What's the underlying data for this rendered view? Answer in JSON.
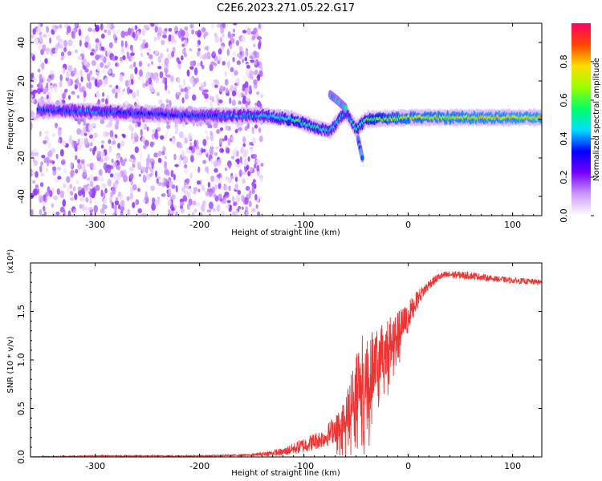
{
  "title": "C2E6.2023.271.05.22.G17",
  "chart_data": [
    {
      "type": "heatmap",
      "xlabel": "Height of straight line (km)",
      "ylabel": "Frequency (Hz)",
      "xlim": [
        -362,
        128
      ],
      "ylim": [
        -50,
        50
      ],
      "x_ticks": [
        -300,
        -200,
        -100,
        0,
        100
      ],
      "y_ticks": [
        -40,
        -20,
        0,
        20,
        40
      ],
      "colorbar": {
        "label": "Normalized spectral amplitude",
        "range": [
          0.0,
          1.0
        ],
        "ticks": [
          "0.0",
          "0.2",
          "0.4",
          "0.6",
          "0.8"
        ],
        "colors": [
          "#ffffff",
          "#cc99ff",
          "#7700ff",
          "#0000ff",
          "#00ddff",
          "#00ff66",
          "#99ff00",
          "#ffdd00",
          "#ff4400",
          "#ff0066"
        ]
      },
      "features": [
        {
          "name": "noise-region",
          "x_range": [
            -362,
            -140
          ],
          "y_range": [
            -50,
            50
          ],
          "amplitude": 0.1
        },
        {
          "name": "main-ridge",
          "points": [
            [
              -355,
              5
            ],
            [
              -300,
              4
            ],
            [
              -250,
              3
            ],
            [
              -200,
              2
            ],
            [
              -140,
              2
            ],
            [
              -110,
              0
            ],
            [
              -90,
              -4
            ],
            [
              -75,
              -6
            ],
            [
              -60,
              4
            ],
            [
              -50,
              -5
            ],
            [
              -40,
              0
            ],
            [
              0,
              1
            ],
            [
              128,
              1
            ]
          ],
          "amplitude": [
            0.35,
            0.4,
            0.35,
            0.35,
            0.45,
            0.55,
            0.5,
            0.45,
            0.45,
            0.5,
            0.6,
            0.7,
            0.75
          ]
        },
        {
          "name": "upper-branch",
          "points": [
            [
              -75,
              13
            ],
            [
              -68,
              10
            ],
            [
              -60,
              6
            ]
          ],
          "amplitude": 0.45
        },
        {
          "name": "lower-branch",
          "points": [
            [
              -48,
              -10
            ],
            [
              -46,
              -15
            ],
            [
              -44,
              -20
            ]
          ],
          "amplitude": 0.4
        }
      ]
    },
    {
      "type": "line",
      "xlabel": "Height of straight line (km)",
      "ylabel": "SNR (10 * v/v)",
      "y_multiplier": "(x10⁴)",
      "xlim": [
        -362,
        128
      ],
      "ylim": [
        0,
        2
      ],
      "x_ticks": [
        -300,
        -200,
        -100,
        0,
        100
      ],
      "y_ticks": [
        "0.0",
        "0.5",
        "1.0",
        "1.5"
      ],
      "color": "#ee3333",
      "envelope": {
        "x": [
          -362,
          -300,
          -200,
          -150,
          -120,
          -100,
          -80,
          -60,
          -50,
          -40,
          -30,
          -20,
          -10,
          0,
          10,
          20,
          30,
          40,
          60,
          80,
          100,
          128
        ],
        "y": [
          0.0,
          0.01,
          0.01,
          0.02,
          0.05,
          0.12,
          0.2,
          0.4,
          0.75,
          0.9,
          1.0,
          1.15,
          1.25,
          1.45,
          1.65,
          1.78,
          1.86,
          1.88,
          1.87,
          1.84,
          1.82,
          1.8
        ],
        "noise": [
          0.004,
          0.006,
          0.006,
          0.01,
          0.04,
          0.08,
          0.1,
          0.2,
          0.4,
          0.45,
          0.3,
          0.3,
          0.25,
          0.15,
          0.08,
          0.05,
          0.04,
          0.04,
          0.04,
          0.03,
          0.03,
          0.03
        ]
      }
    }
  ]
}
